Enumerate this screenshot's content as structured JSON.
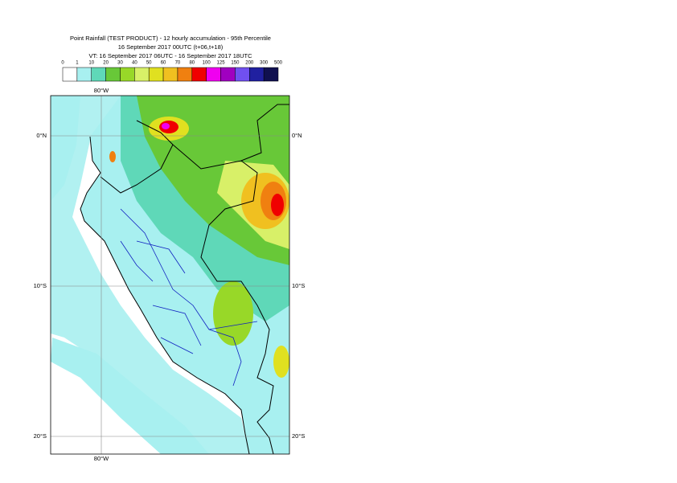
{
  "header": {
    "title": "Point Rainfall (TEST PRODUCT) - 12 hourly accumulation - 95th Percentile",
    "line2": "16 September 2017 00UTC (t+06,t+18)",
    "line3": "VT: 16 September 2017 06UTC - 16 September 2017 18UTC"
  },
  "colorbar": {
    "labels": [
      "0",
      "1",
      "10",
      "20",
      "30",
      "40",
      "50",
      "60",
      "70",
      "80",
      "100",
      "125",
      "150",
      "200",
      "300",
      "500"
    ],
    "colors": [
      "#ffffff",
      "#a8f0f0",
      "#5fd8b8",
      "#68c838",
      "#98d828",
      "#d8f068",
      "#e0e020",
      "#f0c020",
      "#f08010",
      "#f00000",
      "#f000f0",
      "#a000c0",
      "#7050f0",
      "#2020a0",
      "#101050"
    ]
  },
  "map": {
    "lon_labels": [
      "80°W"
    ],
    "lat_labels": [
      "0°N",
      "10°S",
      "20°S"
    ]
  }
}
